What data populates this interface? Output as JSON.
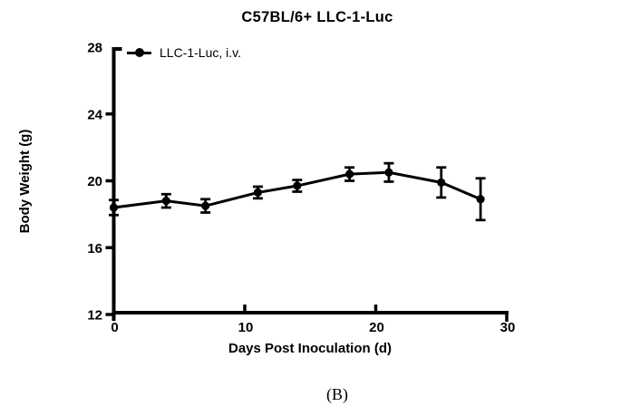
{
  "page": {
    "caption": "(B)",
    "background": "#ffffff"
  },
  "chart_data": {
    "type": "line",
    "title": "C57BL/6+ LLC-1-Luc",
    "xlabel": "Days Post Inoculation (d)",
    "ylabel": "Body Weight (g)",
    "xlim": [
      0,
      30
    ],
    "ylim": [
      12,
      28
    ],
    "x_ticks": [
      0,
      10,
      20,
      30
    ],
    "y_ticks": [
      12,
      16,
      20,
      24,
      28
    ],
    "grid": false,
    "legend_position": "top-left-inside",
    "colors": {
      "series": "#000000",
      "text": "#000000",
      "background": "#ffffff"
    },
    "series": [
      {
        "name": "LLC-1-Luc, i.v.",
        "marker": "filled-circle",
        "color": "#000000",
        "x": [
          0,
          4,
          7,
          11,
          14,
          18,
          21,
          25,
          28
        ],
        "y": [
          18.4,
          18.8,
          18.5,
          19.3,
          19.7,
          20.4,
          20.5,
          19.9,
          18.9
        ],
        "error": [
          0.45,
          0.4,
          0.4,
          0.35,
          0.35,
          0.4,
          0.55,
          0.9,
          1.25
        ]
      }
    ]
  }
}
